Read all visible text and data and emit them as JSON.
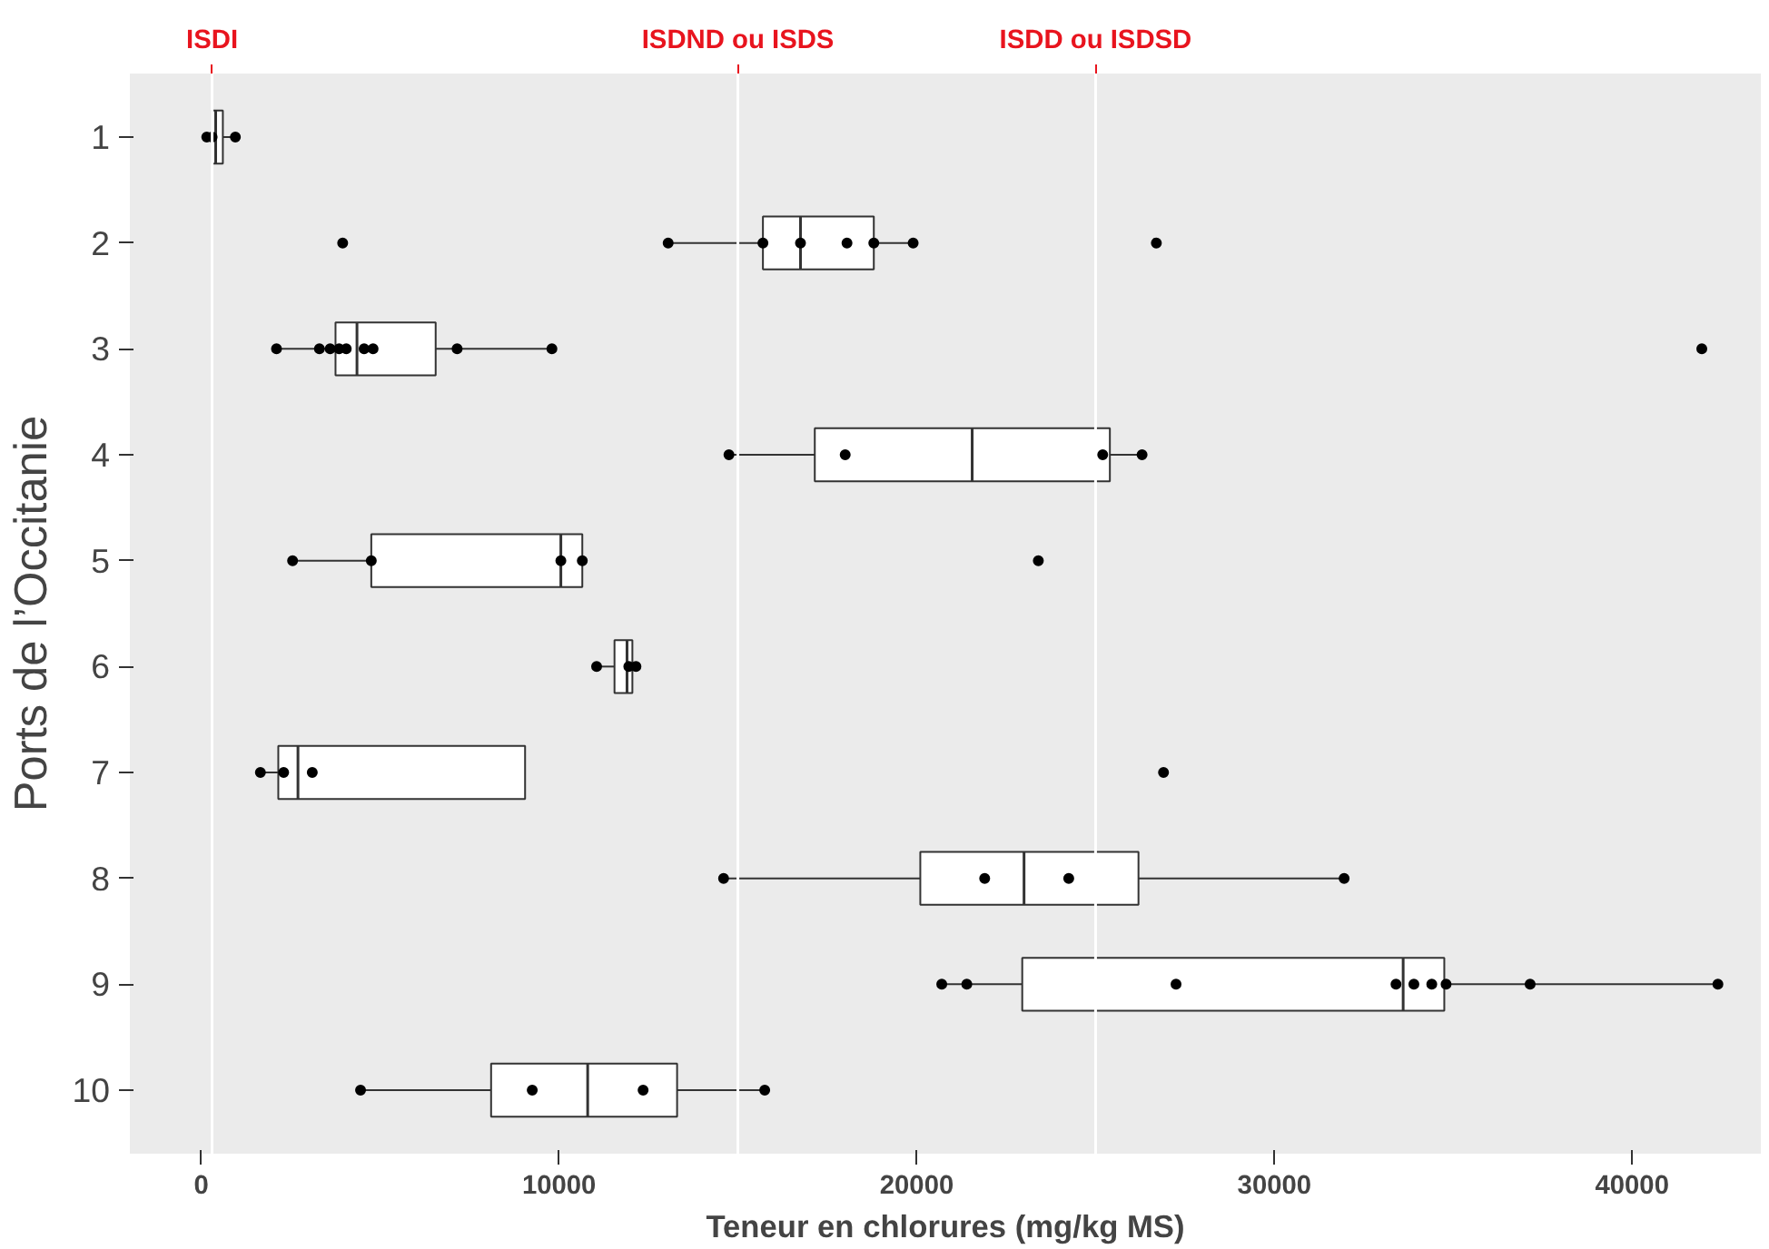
{
  "chart_data": {
    "type": "box",
    "orientation": "horizontal",
    "xlabel": "Teneur en chlorures (mg/kg MS)",
    "ylabel": "Ports de l’Occitanie",
    "categories": [
      "1",
      "2",
      "3",
      "4",
      "5",
      "6",
      "7",
      "8",
      "9",
      "10"
    ],
    "boxes": [
      {
        "low": 100,
        "q1": 300,
        "median": 400,
        "q3": 600,
        "high": 950
      },
      {
        "low": 13050,
        "q1": 15700,
        "median": 16750,
        "q3": 18800,
        "high": 19900
      },
      {
        "low": 2100,
        "q1": 3750,
        "median": 4350,
        "q3": 6550,
        "high": 9800
      },
      {
        "low": 14750,
        "q1": 17150,
        "median": 21550,
        "q3": 25400,
        "high": 26300
      },
      {
        "low": 2550,
        "q1": 4750,
        "median": 10050,
        "q3": 10650,
        "high": 10650
      },
      {
        "low": 11050,
        "q1": 11550,
        "median": 11900,
        "q3": 12050,
        "high": 12200
      },
      {
        "low": 1650,
        "q1": 2150,
        "median": 2700,
        "q3": 9050,
        "high": 9050
      },
      {
        "low": 14600,
        "q1": 20100,
        "median": 23000,
        "q3": 26200,
        "high": 31950
      },
      {
        "low": 20700,
        "q1": 22950,
        "median": 33600,
        "q3": 34750,
        "high": 42400
      },
      {
        "low": 4450,
        "q1": 8100,
        "median": 10800,
        "q3": 13300,
        "high": 15750
      }
    ],
    "series": [
      {
        "type": "scatter",
        "color": "#000000",
        "x": [
          "1",
          "1",
          "1",
          "2",
          "2",
          "2",
          "2",
          "2",
          "2",
          "2",
          "2",
          "3",
          "3",
          "3",
          "3",
          "3",
          "3",
          "3",
          "3",
          "3",
          "3",
          "4",
          "4",
          "4",
          "4",
          "5",
          "5",
          "5",
          "5",
          "5",
          "6",
          "6",
          "6",
          "7",
          "7",
          "7",
          "7",
          "8",
          "8",
          "8",
          "8",
          "9",
          "9",
          "9",
          "9",
          "9",
          "9",
          "9",
          "9",
          "9",
          "10",
          "10",
          "10",
          "10"
        ],
        "values": [
          150,
          300,
          950,
          13050,
          15700,
          16750,
          18050,
          18800,
          19900,
          3950,
          26700,
          2100,
          3300,
          3600,
          3850,
          4050,
          4550,
          4800,
          7150,
          9800,
          41950,
          14750,
          18000,
          25200,
          26300,
          2550,
          4750,
          10050,
          10650,
          23400,
          11050,
          11950,
          12150,
          1650,
          2300,
          3100,
          26900,
          14600,
          21900,
          24250,
          31950,
          20700,
          21400,
          27250,
          33400,
          33900,
          34400,
          34800,
          37150,
          42400,
          4450,
          9250,
          12350,
          15750
        ]
      }
    ],
    "xlim": [
      -2000,
      43600
    ],
    "xticks": [
      0,
      10000,
      20000,
      30000,
      40000
    ],
    "ref_lines": [
      {
        "axis": "x",
        "value": 300,
        "label": "ISDI",
        "color": "#ffffff"
      },
      {
        "axis": "x",
        "value": 15000,
        "label": "ISDND ou ISDS",
        "color": "#ffffff"
      },
      {
        "axis": "x",
        "value": 25000,
        "label": "ISDD ou ISDSD",
        "color": "#ffffff"
      }
    ],
    "grid": false,
    "marker": "circle"
  }
}
